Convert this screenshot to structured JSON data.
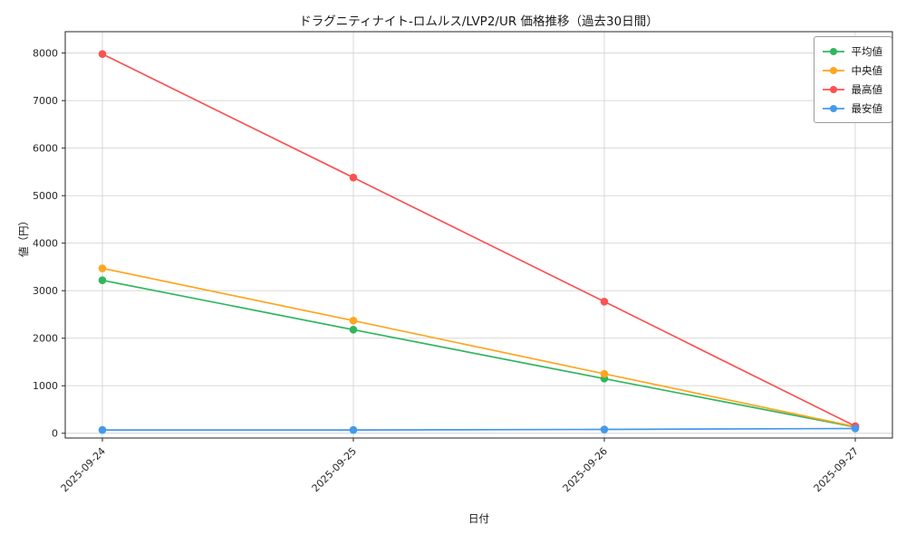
{
  "chart_data": {
    "type": "line",
    "title": "ドラグニティナイト-ロムルス/LVP2/UR 価格推移（過去30日間）",
    "xlabel": "日付",
    "ylabel": "値（円）",
    "categories": [
      "2025-09-24",
      "2025-09-25",
      "2025-09-26",
      "2025-09-27"
    ],
    "series": [
      {
        "key": "average",
        "name": "平均値",
        "color": "#2fb65e",
        "values": [
          3220,
          2180,
          1150,
          130
        ]
      },
      {
        "key": "median",
        "name": "中央値",
        "color": "#ffa51f",
        "values": [
          3470,
          2370,
          1250,
          140
        ]
      },
      {
        "key": "max",
        "name": "最高値",
        "color": "#fa5252",
        "values": [
          7980,
          5380,
          2770,
          150
        ]
      },
      {
        "key": "min",
        "name": "最安値",
        "color": "#4599ea",
        "values": [
          70,
          70,
          80,
          100
        ]
      }
    ],
    "ylim": [
      -100,
      8450
    ],
    "yticks": [
      0,
      1000,
      2000,
      3000,
      4000,
      5000,
      6000,
      7000,
      8000
    ],
    "grid": true,
    "grid_color": "#d4d4d4",
    "axis_color": "#262626",
    "legend_position": "upper right"
  }
}
